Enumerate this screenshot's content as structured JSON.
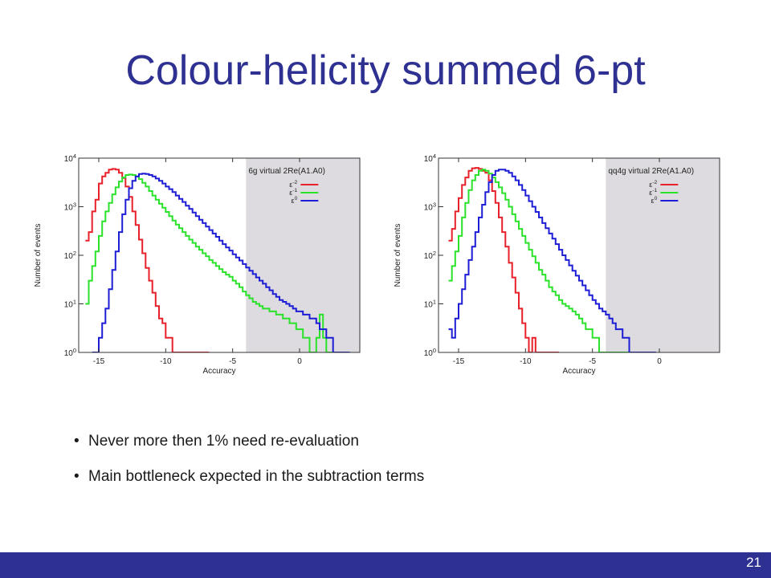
{
  "slide": {
    "title": "Colour-helicity summed 6-pt",
    "bullets": [
      "Never more then 1% need re-evaluation",
      "Main bottleneck expected in the subtraction terms"
    ],
    "page_number": "21",
    "bullet_char": "•"
  },
  "colors": {
    "title": "#2E3192",
    "footer": "#2E3192",
    "shade": "#DDDBDF",
    "eps-2": "#E8202A",
    "eps-1": "#2BE22B",
    "eps0": "#1D1DD6"
  },
  "chart_data": [
    {
      "type": "histogram",
      "title": "6g virtual 2Re(A1.A0)",
      "xlabel": "Accuracy",
      "ylabel": "Number of events",
      "xlim": [
        -16.5,
        4.5
      ],
      "ylim": [
        1,
        10000
      ],
      "yscale": "log",
      "x_ticks": [
        -15,
        -10,
        -5,
        0
      ],
      "y_ticks": [
        {
          "base": "10",
          "exp": "0",
          "value": 1
        },
        {
          "base": "10",
          "exp": "1",
          "value": 10
        },
        {
          "base": "10",
          "exp": "2",
          "value": 100
        },
        {
          "base": "10",
          "exp": "3",
          "value": 1000
        },
        {
          "base": "10",
          "exp": "4",
          "value": 10000
        }
      ],
      "shaded_region": [
        -4,
        4.5
      ],
      "legend_position": "top-right",
      "bin_width": 0.25,
      "series": [
        {
          "label_base": "ε",
          "label_exp": "-2",
          "color": "#E8202A",
          "x_start": -16.0,
          "values": [
            200,
            300,
            800,
            1400,
            3000,
            4200,
            5000,
            5800,
            6000,
            5800,
            5000,
            3900,
            2600,
            1600,
            800,
            420,
            210,
            110,
            55,
            30,
            17,
            9,
            5,
            4,
            2,
            2,
            1,
            1,
            1,
            1,
            1,
            1,
            1,
            1,
            1,
            1,
            1
          ]
        },
        {
          "label_base": "ε",
          "label_exp": "-1",
          "color": "#2BE22B",
          "x_start": -16.0,
          "values": [
            10,
            30,
            60,
            120,
            250,
            500,
            800,
            1200,
            1800,
            2500,
            3300,
            4000,
            4500,
            4600,
            4500,
            4200,
            3700,
            3100,
            2600,
            2100,
            1700,
            1400,
            1150,
            950,
            780,
            640,
            520,
            430,
            360,
            300,
            250,
            210,
            180,
            150,
            130,
            110,
            95,
            80,
            70,
            60,
            52,
            45,
            40,
            36,
            30,
            26,
            22,
            18,
            15,
            13,
            11,
            10,
            9,
            8,
            8,
            7,
            7,
            6,
            6,
            5,
            5,
            4,
            4,
            3,
            3,
            2,
            2,
            1,
            1,
            2,
            6,
            2,
            1,
            1,
            1,
            1,
            1
          ]
        },
        {
          "label_base": "ε",
          "label_exp": "0",
          "color": "#1D1DD6",
          "x_start": -15.5,
          "values": [
            1,
            1,
            2,
            4,
            8,
            20,
            50,
            120,
            300,
            700,
            1400,
            2400,
            3400,
            4200,
            4700,
            4800,
            4700,
            4500,
            4200,
            3800,
            3400,
            3000,
            2600,
            2300,
            2000,
            1700,
            1450,
            1250,
            1050,
            900,
            760,
            640,
            540,
            460,
            390,
            330,
            280,
            240,
            200,
            170,
            145,
            125,
            105,
            90,
            78,
            66,
            56,
            48,
            41,
            35,
            30,
            26,
            22,
            19,
            16,
            14,
            12,
            11,
            10,
            9,
            8,
            7,
            7,
            6,
            6,
            5,
            5,
            4,
            3,
            3,
            2,
            2,
            1,
            1,
            1,
            1,
            1
          ]
        }
      ]
    },
    {
      "type": "histogram",
      "title": "qq4g virtual 2Re(A1.A0)",
      "xlabel": "Accuracy",
      "ylabel": "Number of events",
      "xlim": [
        -16.5,
        4.5
      ],
      "ylim": [
        1,
        10000
      ],
      "yscale": "log",
      "x_ticks": [
        -15,
        -10,
        -5,
        0
      ],
      "y_ticks": [
        {
          "base": "10",
          "exp": "0",
          "value": 1
        },
        {
          "base": "10",
          "exp": "1",
          "value": 10
        },
        {
          "base": "10",
          "exp": "2",
          "value": 100
        },
        {
          "base": "10",
          "exp": "3",
          "value": 1000
        },
        {
          "base": "10",
          "exp": "4",
          "value": 10000
        }
      ],
      "shaded_region": [
        -4,
        4.5
      ],
      "legend_position": "top-right",
      "bin_width": 0.25,
      "series": [
        {
          "label_base": "ε",
          "label_exp": "-2",
          "color": "#E8202A",
          "x_start": -15.75,
          "values": [
            200,
            350,
            800,
            1500,
            2800,
            4000,
            5500,
            6200,
            6300,
            6000,
            5500,
            5000,
            3500,
            2100,
            1200,
            600,
            300,
            150,
            70,
            35,
            17,
            8,
            4,
            2,
            1,
            2,
            1,
            1,
            1,
            1,
            1,
            1,
            1
          ]
        },
        {
          "label_base": "ε",
          "label_exp": "-1",
          "color": "#2BE22B",
          "x_start": -15.75,
          "values": [
            30,
            60,
            120,
            250,
            600,
            1200,
            2200,
            3500,
            4500,
            5500,
            5800,
            5500,
            4800,
            4000,
            3200,
            2500,
            1900,
            1400,
            1000,
            700,
            500,
            350,
            250,
            180,
            130,
            95,
            70,
            50,
            40,
            30,
            22,
            18,
            15,
            12,
            10,
            9,
            8,
            7,
            6,
            5,
            4,
            3,
            3,
            2,
            2,
            1,
            1,
            1,
            1,
            1,
            1,
            1,
            1,
            1,
            1,
            1
          ]
        },
        {
          "label_base": "ε",
          "label_exp": "0",
          "color": "#1D1DD6",
          "x_start": -15.75,
          "values": [
            3,
            2,
            5,
            10,
            20,
            40,
            80,
            150,
            300,
            600,
            1100,
            2000,
            3200,
            4500,
            5500,
            5800,
            5800,
            5500,
            5000,
            4200,
            3500,
            2800,
            2200,
            1700,
            1300,
            1000,
            780,
            600,
            460,
            360,
            280,
            220,
            170,
            130,
            100,
            80,
            62,
            48,
            38,
            30,
            24,
            19,
            15,
            12,
            10,
            8,
            7,
            6,
            5,
            4,
            3,
            3,
            2,
            2,
            1,
            1,
            1,
            1,
            1,
            1,
            1,
            1
          ]
        }
      ]
    }
  ]
}
